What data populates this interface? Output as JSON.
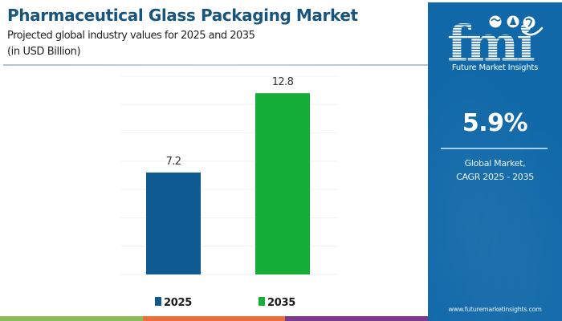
{
  "header": {
    "title": "Pharmaceutical Glass Packaging Market",
    "subtitle": "Projected global industry values for 2025 and 2035",
    "unit": "(in USD Billion)"
  },
  "chart_data": {
    "type": "bar",
    "title": "Pharmaceutical Glass Packaging Market",
    "subtitle": "Projected global industry values for 2025 and 2035",
    "ylabel": "USD Billion",
    "xlabel": "",
    "categories": [
      "2025",
      "2035"
    ],
    "values": [
      7.2,
      12.8
    ],
    "data_labels": [
      "7.2",
      "12.8"
    ],
    "colors": [
      "#0f5a91",
      "#13ad37"
    ],
    "ylim": [
      0,
      14
    ],
    "grid": true,
    "grid_step": 2,
    "axis_ticks_visible": false,
    "legend": {
      "position": "bottom",
      "entries": [
        {
          "label": "2025",
          "color": "#0f5a91"
        },
        {
          "label": "2035",
          "color": "#13ad37"
        }
      ]
    }
  },
  "panel": {
    "brand": "fmi",
    "brand_name": "Future Market Insights",
    "cagr_value": "5.9%",
    "cagr_label_line1": "Global Market,",
    "cagr_label_line2": "CAGR 2025 - 2035",
    "website": "www.futuremarketinsights.com",
    "background_color": "#1068a8"
  },
  "footer_stripe_colors": [
    "#8dba5a",
    "#e8703e",
    "#7b3a8c"
  ]
}
